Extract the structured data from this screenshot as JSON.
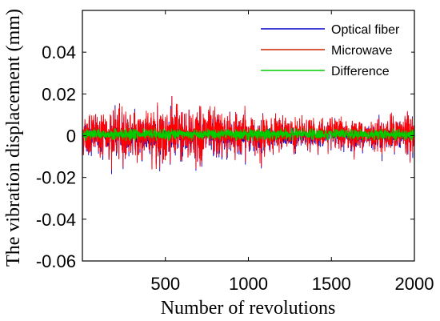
{
  "chart_data": {
    "type": "line",
    "title": "",
    "xlabel": "Number of revolutions",
    "ylabel": "The vibration displacement (mm)",
    "xlim": [
      0,
      2000
    ],
    "ylim": [
      -0.06,
      0.06
    ],
    "xticks": [
      500,
      1000,
      1500,
      2000
    ],
    "xtick_labels": [
      "500",
      "1000",
      "1500",
      "2000"
    ],
    "yticks": [
      -0.06,
      -0.04,
      -0.02,
      0,
      0.02,
      0.04
    ],
    "ytick_labels": [
      "-0.06",
      "-0.04",
      "-0.02",
      "0",
      "0.02",
      "0.04"
    ],
    "grid": false,
    "legend_position": "top-right",
    "series": [
      {
        "name": "Optical fiber",
        "color": "#0000cc",
        "description_stats": {
          "n_points": 2000,
          "approx_min": -0.018,
          "approx_max": 0.018
        }
      },
      {
        "name": "Microwave",
        "color": "#ff0000",
        "description_stats": {
          "n_points": 2000,
          "approx_min": -0.018,
          "approx_max": 0.017
        }
      },
      {
        "name": "Difference",
        "color": "#00cc00",
        "description_stats": {
          "n_points": 2000,
          "approx_min": -0.002,
          "approx_max": 0.0035
        }
      }
    ]
  }
}
